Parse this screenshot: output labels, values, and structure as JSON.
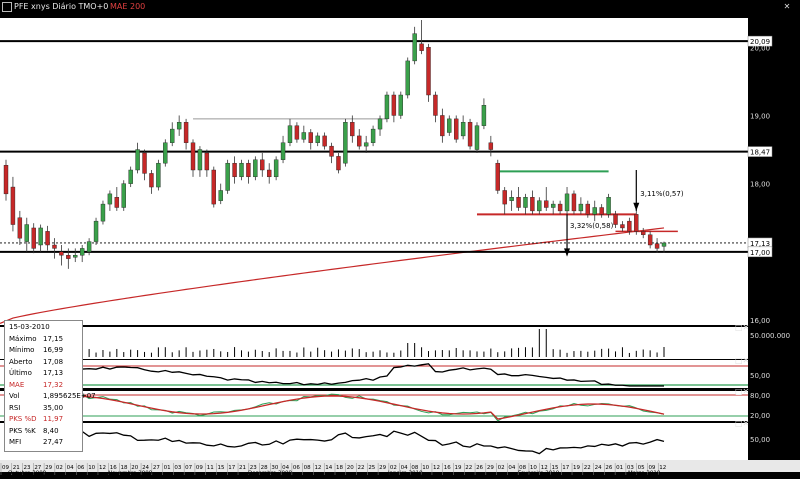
{
  "header": {
    "symbol_title": "PFE xnys Diário TMO+0",
    "indicator_label": "MAE 200"
  },
  "colors": {
    "background": "#000000",
    "bull": "#3aa04a",
    "bear": "#c62828",
    "mae": "#c62828",
    "support": "#000000",
    "green_line": "#2e9f55"
  },
  "chart_data": [
    {
      "type": "candlestick",
      "title": "PFE xnys Diário TMO+0",
      "ylim": [
        16.0,
        20.4
      ],
      "price_labels": [
        "20,09",
        "20,00",
        "19,00",
        "18,47",
        "18,00",
        "17,13",
        "17,00",
        "16,00"
      ],
      "horizontal_levels": [
        20.09,
        18.47,
        17.13,
        17.0
      ],
      "annotations": [
        {
          "text": "3,11%(0,57)",
          "kind": "up-arrow"
        },
        {
          "text": "3,32%(0,58)",
          "kind": "down-arrow"
        }
      ],
      "candles": [
        {
          "o": 18.27,
          "c": 17.85,
          "h": 18.35,
          "l": 17.75
        },
        {
          "o": 17.95,
          "c": 17.4,
          "h": 18.1,
          "l": 17.3
        },
        {
          "o": 17.5,
          "c": 17.2,
          "h": 17.6,
          "l": 17.1
        },
        {
          "o": 17.15,
          "c": 17.4,
          "h": 17.5,
          "l": 17.0
        },
        {
          "o": 17.35,
          "c": 17.05,
          "h": 17.42,
          "l": 16.98
        },
        {
          "o": 17.1,
          "c": 17.35,
          "h": 17.4,
          "l": 17.0
        },
        {
          "o": 17.3,
          "c": 17.1,
          "h": 17.38,
          "l": 17.02
        },
        {
          "o": 17.1,
          "c": 17.05,
          "h": 17.2,
          "l": 16.9
        },
        {
          "o": 17.0,
          "c": 16.95,
          "h": 17.1,
          "l": 16.8
        },
        {
          "o": 16.95,
          "c": 16.9,
          "h": 17.05,
          "l": 16.75
        },
        {
          "o": 16.92,
          "c": 16.95,
          "h": 17.05,
          "l": 16.85
        },
        {
          "o": 16.95,
          "c": 17.05,
          "h": 17.1,
          "l": 16.85
        },
        {
          "o": 17.0,
          "c": 17.15,
          "h": 17.2,
          "l": 16.95
        },
        {
          "o": 17.15,
          "c": 17.45,
          "h": 17.5,
          "l": 17.1
        },
        {
          "o": 17.45,
          "c": 17.7,
          "h": 17.75,
          "l": 17.4
        },
        {
          "o": 17.7,
          "c": 17.85,
          "h": 17.9,
          "l": 17.6
        },
        {
          "o": 17.8,
          "c": 17.65,
          "h": 17.95,
          "l": 17.6
        },
        {
          "o": 17.65,
          "c": 18.0,
          "h": 18.05,
          "l": 17.6
        },
        {
          "o": 18.0,
          "c": 18.2,
          "h": 18.25,
          "l": 17.95
        },
        {
          "o": 18.2,
          "c": 18.5,
          "h": 18.6,
          "l": 18.15
        },
        {
          "o": 18.45,
          "c": 18.15,
          "h": 18.5,
          "l": 18.05
        },
        {
          "o": 18.15,
          "c": 17.95,
          "h": 18.2,
          "l": 17.85
        },
        {
          "o": 17.95,
          "c": 18.3,
          "h": 18.35,
          "l": 17.9
        },
        {
          "o": 18.3,
          "c": 18.6,
          "h": 18.65,
          "l": 18.25
        },
        {
          "o": 18.6,
          "c": 18.8,
          "h": 18.9,
          "l": 18.55
        },
        {
          "o": 18.8,
          "c": 18.9,
          "h": 19.0,
          "l": 18.7
        },
        {
          "o": 18.9,
          "c": 18.6,
          "h": 18.95,
          "l": 18.5
        },
        {
          "o": 18.6,
          "c": 18.2,
          "h": 18.65,
          "l": 18.1
        },
        {
          "o": 18.2,
          "c": 18.5,
          "h": 18.55,
          "l": 18.1
        },
        {
          "o": 18.45,
          "c": 18.2,
          "h": 18.5,
          "l": 18.1
        },
        {
          "o": 18.2,
          "c": 17.7,
          "h": 18.25,
          "l": 17.65
        },
        {
          "o": 17.75,
          "c": 17.9,
          "h": 18.0,
          "l": 17.7
        },
        {
          "o": 17.9,
          "c": 18.3,
          "h": 18.35,
          "l": 17.85
        },
        {
          "o": 18.3,
          "c": 18.1,
          "h": 18.4,
          "l": 18.0
        },
        {
          "o": 18.1,
          "c": 18.3,
          "h": 18.35,
          "l": 18.05
        },
        {
          "o": 18.3,
          "c": 18.1,
          "h": 18.35,
          "l": 18.0
        },
        {
          "o": 18.1,
          "c": 18.35,
          "h": 18.4,
          "l": 18.05
        },
        {
          "o": 18.35,
          "c": 18.2,
          "h": 18.45,
          "l": 18.1
        },
        {
          "o": 18.2,
          "c": 18.1,
          "h": 18.3,
          "l": 18.0
        },
        {
          "o": 18.1,
          "c": 18.35,
          "h": 18.4,
          "l": 18.05
        },
        {
          "o": 18.35,
          "c": 18.6,
          "h": 18.7,
          "l": 18.3
        },
        {
          "o": 18.6,
          "c": 18.85,
          "h": 18.95,
          "l": 18.55
        },
        {
          "o": 18.85,
          "c": 18.65,
          "h": 18.9,
          "l": 18.6
        },
        {
          "o": 18.65,
          "c": 18.75,
          "h": 18.85,
          "l": 18.6
        },
        {
          "o": 18.75,
          "c": 18.6,
          "h": 18.8,
          "l": 18.5
        },
        {
          "o": 18.6,
          "c": 18.7,
          "h": 18.75,
          "l": 18.55
        },
        {
          "o": 18.7,
          "c": 18.55,
          "h": 18.75,
          "l": 18.5
        },
        {
          "o": 18.55,
          "c": 18.4,
          "h": 18.6,
          "l": 18.3
        },
        {
          "o": 18.4,
          "c": 18.2,
          "h": 18.45,
          "l": 18.15
        },
        {
          "o": 18.3,
          "c": 18.9,
          "h": 18.95,
          "l": 18.25
        },
        {
          "o": 18.9,
          "c": 18.7,
          "h": 19.0,
          "l": 18.6
        },
        {
          "o": 18.7,
          "c": 18.55,
          "h": 18.8,
          "l": 18.5
        },
        {
          "o": 18.55,
          "c": 18.6,
          "h": 18.7,
          "l": 18.45
        },
        {
          "o": 18.6,
          "c": 18.8,
          "h": 18.85,
          "l": 18.55
        },
        {
          "o": 18.8,
          "c": 18.95,
          "h": 19.0,
          "l": 18.7
        },
        {
          "o": 18.95,
          "c": 19.3,
          "h": 19.35,
          "l": 18.9
        },
        {
          "o": 19.3,
          "c": 19.0,
          "h": 19.35,
          "l": 18.9
        },
        {
          "o": 19.0,
          "c": 19.3,
          "h": 19.35,
          "l": 18.95
        },
        {
          "o": 19.3,
          "c": 19.8,
          "h": 19.85,
          "l": 19.25
        },
        {
          "o": 19.8,
          "c": 20.2,
          "h": 20.3,
          "l": 19.75
        },
        {
          "o": 20.05,
          "c": 19.95,
          "h": 20.4,
          "l": 19.9
        },
        {
          "o": 20.0,
          "c": 19.3,
          "h": 20.05,
          "l": 19.2
        },
        {
          "o": 19.3,
          "c": 19.0,
          "h": 19.35,
          "l": 18.9
        },
        {
          "o": 19.0,
          "c": 18.7,
          "h": 19.1,
          "l": 18.6
        },
        {
          "o": 18.75,
          "c": 18.95,
          "h": 19.0,
          "l": 18.7
        },
        {
          "o": 18.95,
          "c": 18.65,
          "h": 19.0,
          "l": 18.6
        },
        {
          "o": 18.7,
          "c": 18.9,
          "h": 19.0,
          "l": 18.65
        },
        {
          "o": 18.9,
          "c": 18.55,
          "h": 18.95,
          "l": 18.5
        },
        {
          "o": 18.5,
          "c": 18.85,
          "h": 18.9,
          "l": 18.45
        },
        {
          "o": 18.85,
          "c": 19.15,
          "h": 19.25,
          "l": 18.8
        },
        {
          "o": 18.6,
          "c": 18.5,
          "h": 18.7,
          "l": 18.4
        },
        {
          "o": 18.3,
          "c": 17.9,
          "h": 18.35,
          "l": 17.85
        },
        {
          "o": 17.9,
          "c": 17.7,
          "h": 17.95,
          "l": 17.55
        },
        {
          "o": 17.75,
          "c": 17.8,
          "h": 17.9,
          "l": 17.6
        },
        {
          "o": 17.8,
          "c": 17.65,
          "h": 17.95,
          "l": 17.6
        },
        {
          "o": 17.65,
          "c": 17.8,
          "h": 17.85,
          "l": 17.55
        },
        {
          "o": 17.8,
          "c": 17.6,
          "h": 17.9,
          "l": 17.55
        },
        {
          "o": 17.6,
          "c": 17.75,
          "h": 17.8,
          "l": 17.55
        },
        {
          "o": 17.75,
          "c": 17.65,
          "h": 17.95,
          "l": 17.6
        },
        {
          "o": 17.65,
          "c": 17.7,
          "h": 17.75,
          "l": 17.55
        },
        {
          "o": 17.7,
          "c": 17.6,
          "h": 17.75,
          "l": 17.55
        },
        {
          "o": 17.6,
          "c": 17.85,
          "h": 17.95,
          "l": 17.55
        },
        {
          "o": 17.85,
          "c": 17.6,
          "h": 17.9,
          "l": 17.55
        },
        {
          "o": 17.6,
          "c": 17.7,
          "h": 17.8,
          "l": 17.55
        },
        {
          "o": 17.7,
          "c": 17.55,
          "h": 17.75,
          "l": 17.5
        },
        {
          "o": 17.55,
          "c": 17.65,
          "h": 17.75,
          "l": 17.45
        },
        {
          "o": 17.65,
          "c": 17.55,
          "h": 17.7,
          "l": 17.5
        },
        {
          "o": 17.55,
          "c": 17.8,
          "h": 17.85,
          "l": 17.5
        },
        {
          "o": 17.55,
          "c": 17.4,
          "h": 17.6,
          "l": 17.35
        },
        {
          "o": 17.4,
          "c": 17.35,
          "h": 17.45,
          "l": 17.3
        },
        {
          "o": 17.45,
          "c": 17.3,
          "h": 17.5,
          "l": 17.25
        },
        {
          "o": 17.55,
          "c": 17.3,
          "h": 17.6,
          "l": 17.25
        },
        {
          "o": 17.3,
          "c": 17.25,
          "h": 17.35,
          "l": 17.2
        },
        {
          "o": 17.25,
          "c": 17.1,
          "h": 17.3,
          "l": 17.05
        },
        {
          "o": 17.12,
          "c": 17.05,
          "h": 17.2,
          "l": 16.99
        },
        {
          "o": 17.08,
          "c": 17.13,
          "h": 17.15,
          "l": 16.99
        }
      ]
    },
    {
      "type": "bar",
      "title": "Volume",
      "ylabel_ticks": [
        "50.000.000"
      ]
    },
    {
      "type": "line",
      "title": "RSI",
      "ticks": [
        "50,00"
      ]
    },
    {
      "type": "line",
      "title": "PKS",
      "ticks": [
        "80,00",
        "20,00"
      ]
    },
    {
      "type": "line",
      "title": "MFI",
      "ticks": [
        "50,00"
      ]
    }
  ],
  "info": [
    {
      "k": "",
      "v": "15-03-2010"
    },
    {
      "k": "Máximo",
      "v": "17,15"
    },
    {
      "k": "Mínimo",
      "v": "16,99"
    },
    {
      "k": "Aberto",
      "v": "17,08"
    },
    {
      "k": "Último",
      "v": "17,13"
    },
    {
      "k": "MAE",
      "v": "17,32"
    },
    {
      "k": "Vol",
      "v": "1,895625E+07"
    },
    {
      "k": "RSI",
      "v": "35,00"
    },
    {
      "k": "PKS %D",
      "v": "11,97"
    },
    {
      "k": "PKS %K",
      "v": "8,40"
    },
    {
      "k": "MFI",
      "v": "27,47"
    }
  ],
  "xaxis": {
    "days": [
      "09",
      "21",
      "23",
      "27",
      "29",
      "02",
      "04",
      "06",
      "10",
      "12",
      "16",
      "18",
      "20",
      "24",
      "27",
      "01",
      "03",
      "07",
      "09",
      "11",
      "15",
      "17",
      "21",
      "23",
      "28",
      "30",
      "04",
      "06",
      "08",
      "12",
      "14",
      "18",
      "20",
      "22",
      "25",
      "29",
      "02",
      "04",
      "08",
      "10",
      "12",
      "16",
      "19",
      "22",
      "26",
      "29",
      "02",
      "04",
      "08",
      "10",
      "12",
      "15",
      "17",
      "19",
      "22",
      "24",
      "26",
      "01",
      "03",
      "05",
      "09",
      "12"
    ],
    "months": [
      "Outubro 2009",
      "Novembro 2009",
      "Dezembro 2009",
      "Janeiro 2010",
      "Fevereiro 2010",
      "Março 2010"
    ]
  }
}
